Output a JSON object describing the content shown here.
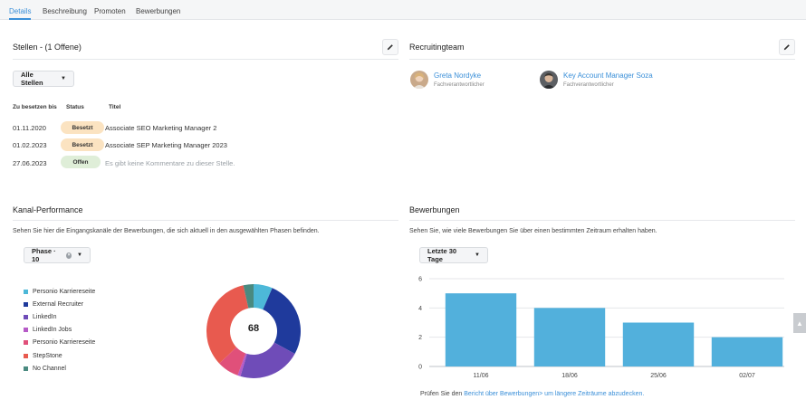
{
  "tabs": [
    {
      "label": "Details",
      "active": true
    },
    {
      "label": "Beschreibung",
      "active": false
    },
    {
      "label": "Promoten",
      "active": false
    },
    {
      "label": "Bewerbungen",
      "active": false
    }
  ],
  "positions": {
    "title": "Stellen - (1 Offene)",
    "filter_label": "Alle Stellen",
    "headers": {
      "date": "Zu besetzen bis",
      "status": "Status",
      "title": "Titel"
    },
    "rows": [
      {
        "date": "01.11.2020",
        "status": "Besetzt",
        "status_kind": "besetzt",
        "title": "Associate SEO Marketing Manager 2"
      },
      {
        "date": "01.02.2023",
        "status": "Besetzt",
        "status_kind": "besetzt",
        "title": "Associate SEP Marketing Manager 2023"
      },
      {
        "date": "27.06.2023",
        "status": "Offen",
        "status_kind": "offen",
        "title": "Es gibt keine Kommentare zu dieser Stelle."
      }
    ]
  },
  "team": {
    "title": "Recruitingteam",
    "members": [
      {
        "name": "Greta Nordyke",
        "role": "Fachverantwortlicher"
      },
      {
        "name": "Key Account Manager Soza",
        "role": "Fachverantwortlicher"
      }
    ]
  },
  "channels": {
    "title": "Kanal-Performance",
    "description": "Sehen Sie hier die Eingangskanäle der Bewerbungen, die sich aktuell in den ausgewählten Phasen befinden.",
    "filter_label": "Phase · 10",
    "total": "68",
    "legend": [
      {
        "label": "Personio Karriereseite",
        "color": "#4db8d8"
      },
      {
        "label": "External Recruiter",
        "color": "#1f3a9c"
      },
      {
        "label": "LinkedIn",
        "color": "#6f4cb8"
      },
      {
        "label": "LinkedIn Jobs",
        "color": "#b65bc7"
      },
      {
        "label": "Personio Karriereseite",
        "color": "#e0507a"
      },
      {
        "label": "StepStone",
        "color": "#e85a4f"
      },
      {
        "label": "No Channel",
        "color": "#4a8a80"
      }
    ]
  },
  "chart_data": {
    "type": "bar",
    "title": "Bewerbungen",
    "subtitle": "Sehen Sie, wie viele Bewerbungen Sie über einen bestimmten Zeitraum erhalten haben.",
    "filter_label": "Letzte 30 Tage",
    "categories": [
      "11/06",
      "18/06",
      "25/06",
      "02/07"
    ],
    "values": [
      5,
      4,
      3,
      2
    ],
    "yticks": [
      "0",
      "2",
      "4",
      "6"
    ],
    "ylim": [
      0,
      6
    ],
    "color": "#52b0dc",
    "grid": true
  },
  "applications_footer": {
    "prefix": "Prüfen Sie den ",
    "link": "Bericht über Bewerbungen> um längere Zeiträume abzudecken."
  }
}
